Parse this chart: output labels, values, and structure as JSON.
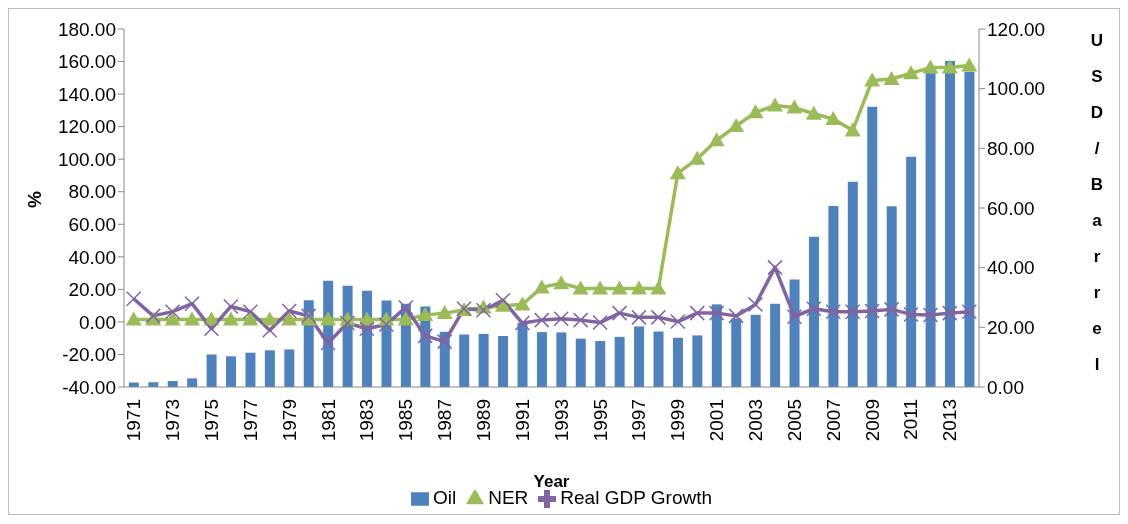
{
  "chart_data": {
    "type": "bar",
    "xlabel": "Year",
    "ylabel": "%",
    "y2label": "USD/Barrel",
    "categories": [
      "1971",
      null,
      "1973",
      null,
      "1975",
      null,
      "1977",
      null,
      "1979",
      null,
      "1981",
      null,
      "1983",
      null,
      "1985",
      null,
      "1987",
      null,
      "1989",
      null,
      "1991",
      null,
      "1993",
      null,
      "1995",
      null,
      "1997",
      null,
      "1999",
      null,
      "2001",
      null,
      "2003",
      null,
      "2005",
      null,
      "2007",
      null,
      "2009",
      null,
      "2011",
      null,
      "2013",
      null
    ],
    "series": [
      {
        "name": "Oil",
        "axis": "y2",
        "color": "#4f81bd",
        "values": [
          1.5,
          1.6,
          2.0,
          2.9,
          10.9,
          10.3,
          11.5,
          12.3,
          12.6,
          29.1,
          35.6,
          33.9,
          32.3,
          29.0,
          27.9,
          27.0,
          18.5,
          17.6,
          17.8,
          17.1,
          21.5,
          18.4,
          18.3,
          16.2,
          15.4,
          16.8,
          20.3,
          18.6,
          16.5,
          17.3,
          27.7,
          23.0,
          24.2,
          27.9,
          36.0,
          50.4,
          60.7,
          68.8,
          93.9,
          60.6,
          77.2,
          105.7,
          109.3,
          105.7
        ]
      },
      {
        "name": "NER",
        "type": "line",
        "axis": "y",
        "marker": "triangle",
        "color": "#9bbb59",
        "values": [
          1.5,
          1.5,
          1.5,
          1.5,
          1.5,
          1.5,
          1.5,
          1.5,
          1.5,
          1.5,
          1.5,
          1.5,
          1.5,
          1.5,
          1.5,
          4.2,
          5.4,
          7.3,
          8.9,
          10.0,
          10.7,
          21.2,
          23.8,
          20.5,
          20.5,
          20.5,
          20.5,
          20.5,
          91.4,
          100.2,
          111.6,
          120.4,
          128.8,
          133.0,
          131.7,
          127.9,
          124.7,
          117.7,
          148.4,
          149.3,
          152.8,
          156.3,
          156.3,
          157.5
        ]
      },
      {
        "name": "Real GDP Growth",
        "type": "line",
        "axis": "y",
        "marker": "cross",
        "color": "#8064a2",
        "values": [
          14.2,
          3.7,
          6.3,
          11.2,
          -4.2,
          9.5,
          6.3,
          -5.1,
          6.7,
          3.7,
          -13.0,
          -0.7,
          -4.2,
          -1.6,
          8.9,
          -8.6,
          -12.1,
          8.1,
          7.2,
          13.3,
          -0.7,
          1.1,
          1.9,
          1.1,
          -0.4,
          5.4,
          2.8,
          2.8,
          0.2,
          5.4,
          5.4,
          3.7,
          10.7,
          33.5,
          3.2,
          8.1,
          6.3,
          6.3,
          6.7,
          7.7,
          4.6,
          4.2,
          5.4,
          6.3
        ]
      }
    ],
    "ylim": [
      -40,
      180
    ],
    "yticks": [
      {
        "value": -40,
        "label": "-40.00"
      },
      {
        "value": -20,
        "label": "-20.00"
      },
      {
        "value": 0,
        "label": "0.00"
      },
      {
        "value": 20,
        "label": "20.00"
      },
      {
        "value": 40,
        "label": "40.00"
      },
      {
        "value": 60,
        "label": "60.00"
      },
      {
        "value": 80,
        "label": "80.00"
      },
      {
        "value": 100,
        "label": "100.00"
      },
      {
        "value": 120,
        "label": "120.00"
      },
      {
        "value": 140,
        "label": "140.00"
      },
      {
        "value": 160,
        "label": "160.00"
      },
      {
        "value": 180,
        "label": "180.00"
      }
    ],
    "y2lim": [
      0,
      120
    ],
    "y2ticks": [
      {
        "value": 0,
        "label": "0.00"
      },
      {
        "value": 20,
        "label": "20.00"
      },
      {
        "value": 40,
        "label": "40.00"
      },
      {
        "value": 60,
        "label": "60.00"
      },
      {
        "value": 80,
        "label": "80.00"
      },
      {
        "value": 100,
        "label": "100.00"
      },
      {
        "value": 120,
        "label": "120.00"
      }
    ],
    "grid": false,
    "legend": "bottom"
  }
}
